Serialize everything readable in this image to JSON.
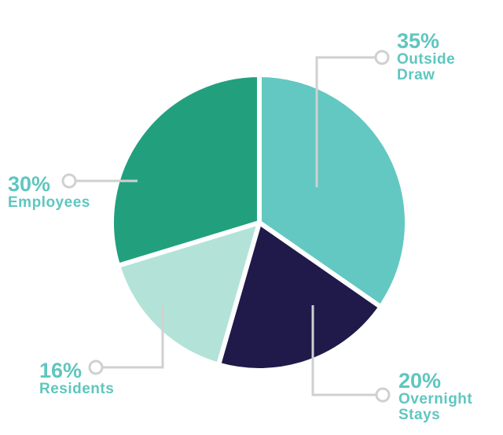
{
  "chart_data": {
    "type": "pie",
    "categories": [
      "Outside Draw",
      "Overnight Stays",
      "Residents",
      "Employees"
    ],
    "values": [
      35,
      20,
      16,
      30
    ],
    "value_labels": [
      "35%",
      "20%",
      "16%",
      "30%"
    ],
    "colors": [
      "#63c8c1",
      "#1f1a4a",
      "#b3e3d8",
      "#22a07e"
    ]
  }
}
